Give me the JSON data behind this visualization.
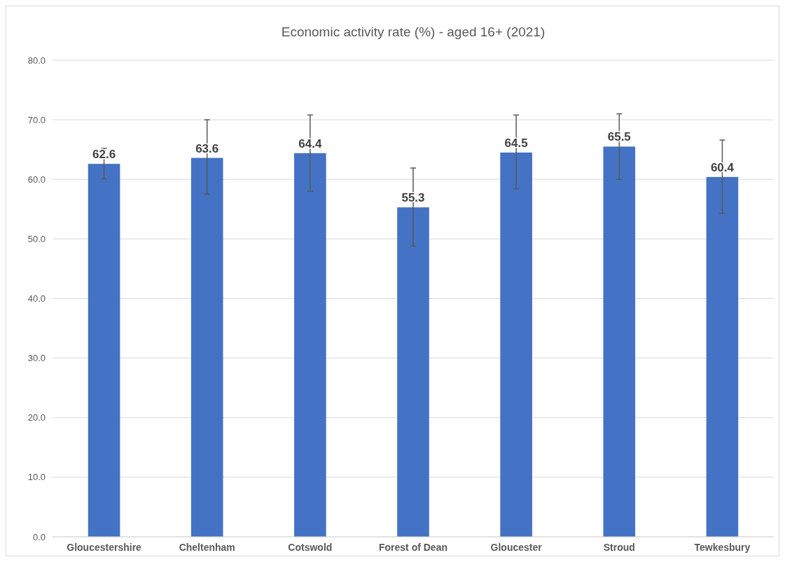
{
  "chart_data": {
    "type": "bar",
    "title": "Economic activity rate (%) - aged 16+ (2021)",
    "categories": [
      "Gloucestershire",
      "Cheltenham",
      "Cotswold",
      "Forest of Dean",
      "Gloucester",
      "Stroud",
      "Tewkesbury"
    ],
    "values": [
      62.6,
      63.6,
      64.4,
      55.3,
      64.5,
      65.5,
      60.4
    ],
    "errors": [
      [
        60.1,
        65.2
      ],
      [
        57.5,
        70.0
      ],
      [
        58.0,
        70.8
      ],
      [
        48.8,
        61.9
      ],
      [
        58.4,
        70.8
      ],
      [
        60.0,
        71.0
      ],
      [
        54.3,
        66.6
      ]
    ],
    "color": "#4472c4",
    "data_labels": true,
    "ylim": [
      0,
      80
    ],
    "yticks": [
      {
        "value": 0,
        "label": "0.0"
      },
      {
        "value": 10,
        "label": "10.0"
      },
      {
        "value": 20,
        "label": "20.0"
      },
      {
        "value": 30,
        "label": "30.0"
      },
      {
        "value": 40,
        "label": "40.0"
      },
      {
        "value": 50,
        "label": "50.0"
      },
      {
        "value": 60,
        "label": "60.0"
      },
      {
        "value": 70,
        "label": "70.0"
      },
      {
        "value": 80,
        "label": "80.0"
      }
    ],
    "grid": "y"
  }
}
